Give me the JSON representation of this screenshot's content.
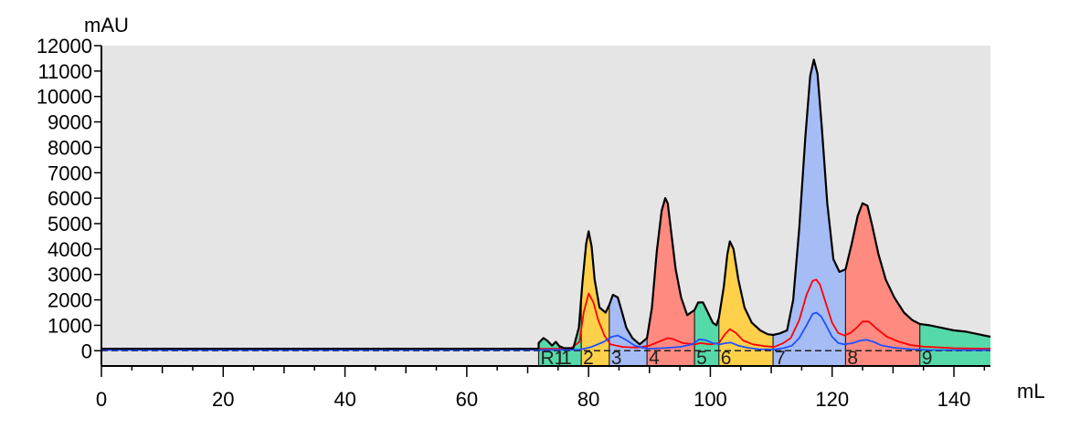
{
  "chart_data": {
    "type": "area",
    "ylabel": "mAU",
    "xlabel": "mL",
    "xlim": [
      0,
      146
    ],
    "ylim": [
      -600,
      12000
    ],
    "x_ticks": [
      0,
      20,
      40,
      60,
      80,
      100,
      120,
      140
    ],
    "y_ticks": [
      0,
      1000,
      2000,
      3000,
      4000,
      5000,
      6000,
      7000,
      8000,
      9000,
      10000,
      11000,
      12000
    ],
    "grid": false,
    "colors": {
      "plot_background": "#e5e5e5",
      "uv_trace": "#000000",
      "red_trace": "#ff0000",
      "blue_trace": "#1f4fff",
      "green_fraction": "#56d9a8",
      "yellow_fraction": "#ffd04a",
      "blue_fraction": "#a6bcf5",
      "red_fraction": "#ff8a80"
    },
    "fractions": [
      {
        "label": "R1",
        "start": 71.8,
        "end": 75.2,
        "color": "#56d9a8"
      },
      {
        "label": "1",
        "start": 75.2,
        "end": 78.8,
        "color": "#56d9a8"
      },
      {
        "label": "2",
        "start": 78.8,
        "end": 83.4,
        "color": "#ffd04a"
      },
      {
        "label": "3",
        "start": 83.4,
        "end": 89.6,
        "color": "#a6bcf5"
      },
      {
        "label": "4",
        "start": 89.6,
        "end": 97.4,
        "color": "#ff8a80"
      },
      {
        "label": "5",
        "start": 97.4,
        "end": 101.4,
        "color": "#56d9a8"
      },
      {
        "label": "6",
        "start": 101.4,
        "end": 110.3,
        "color": "#ffd04a"
      },
      {
        "label": "7",
        "start": 110.3,
        "end": 122.2,
        "color": "#a6bcf5"
      },
      {
        "label": "8",
        "start": 122.2,
        "end": 134.4,
        "color": "#ff8a80"
      },
      {
        "label": "9",
        "start": 134.4,
        "end": 146,
        "color": "#56d9a8"
      }
    ],
    "series": [
      {
        "color": "#000000",
        "x": [
          71.8,
          72.6,
          73.2,
          74.0,
          74.6,
          75.2,
          76.0,
          77.5,
          78.4,
          79.0,
          79.6,
          80.0,
          80.5,
          81.0,
          81.8,
          82.8,
          83.4,
          84.0,
          84.8,
          85.4,
          86.2,
          87.2,
          88.4,
          89.6,
          90.4,
          91.2,
          92.0,
          92.6,
          93.0,
          93.6,
          94.3,
          95.2,
          96.2,
          97.4,
          98.0,
          98.8,
          99.6,
          100.4,
          101.0,
          101.4,
          102.2,
          102.8,
          103.2,
          103.8,
          104.6,
          105.6,
          106.8,
          108.2,
          109.4,
          110.3,
          111.4,
          112.6,
          113.6,
          114.6,
          115.6,
          116.4,
          117.0,
          117.6,
          118.3,
          119.2,
          120.2,
          121.2,
          122.2,
          123.2,
          124.2,
          125.0,
          125.8,
          126.6,
          127.6,
          128.8,
          130.2,
          131.8,
          133.2,
          134.4,
          136.0,
          138.0,
          140.0,
          142.0,
          144.0,
          146.0
        ],
        "values": [
          300,
          500,
          400,
          200,
          350,
          180,
          100,
          100,
          900,
          2700,
          4200,
          4700,
          4100,
          2800,
          1700,
          1500,
          1800,
          2200,
          2100,
          1600,
          900,
          500,
          250,
          500,
          1700,
          3900,
          5500,
          6000,
          5800,
          4600,
          3200,
          2100,
          1400,
          1600,
          1900,
          1900,
          1500,
          1100,
          1000,
          1300,
          2500,
          3800,
          4300,
          4000,
          2800,
          1700,
          1100,
          800,
          650,
          620,
          680,
          800,
          2000,
          4800,
          8400,
          10800,
          11450,
          10900,
          8800,
          5800,
          3600,
          3100,
          3200,
          4200,
          5300,
          5800,
          5700,
          4900,
          3800,
          2800,
          2100,
          1500,
          1200,
          1050,
          1000,
          900,
          800,
          750,
          650,
          550
        ]
      },
      {
        "color": "#ff0000",
        "x": [
          71.8,
          77.0,
          78.5,
          79.2,
          80.0,
          80.8,
          81.6,
          82.6,
          83.6,
          84.6,
          85.6,
          88.0,
          90.0,
          92.0,
          93.0,
          94.0,
          95.5,
          97.4,
          98.4,
          100.0,
          101.4,
          102.4,
          103.2,
          104.2,
          105.4,
          107.0,
          109.0,
          110.5,
          112.0,
          113.2,
          114.6,
          115.8,
          116.8,
          117.4,
          118.0,
          118.8,
          120.0,
          121.0,
          122.0,
          123.0,
          124.0,
          125.0,
          126.0,
          127.4,
          129.0,
          131.0,
          133.0,
          135.0,
          140.0,
          146.0
        ],
        "values": [
          80,
          80,
          350,
          1500,
          2250,
          1900,
          1200,
          600,
          250,
          200,
          150,
          120,
          200,
          400,
          500,
          450,
          300,
          250,
          300,
          250,
          300,
          650,
          850,
          700,
          400,
          250,
          180,
          150,
          300,
          500,
          1200,
          2200,
          2750,
          2800,
          2600,
          2000,
          1100,
          700,
          600,
          700,
          900,
          1150,
          1150,
          850,
          550,
          350,
          220,
          160,
          100,
          80
        ]
      },
      {
        "color": "#1f4fff",
        "x": [
          71.8,
          78.5,
          80.5,
          82.5,
          83.8,
          84.8,
          86.0,
          87.6,
          89.6,
          92.0,
          95.0,
          97.0,
          98.2,
          99.2,
          100.4,
          101.6,
          102.6,
          103.4,
          104.6,
          106.0,
          108.0,
          110.5,
          112.0,
          113.4,
          114.6,
          115.8,
          116.8,
          117.4,
          118.2,
          119.0,
          120.0,
          121.0,
          122.0,
          123.4,
          124.6,
          125.6,
          126.8,
          128.0,
          130.0,
          133.0,
          136.0,
          146.0
        ],
        "values": [
          30,
          40,
          150,
          350,
          550,
          600,
          450,
          200,
          80,
          100,
          150,
          250,
          450,
          420,
          300,
          250,
          300,
          320,
          200,
          120,
          60,
          50,
          100,
          200,
          500,
          1000,
          1450,
          1500,
          1350,
          1000,
          550,
          300,
          250,
          300,
          400,
          430,
          350,
          220,
          120,
          60,
          30,
          20
        ]
      }
    ]
  }
}
